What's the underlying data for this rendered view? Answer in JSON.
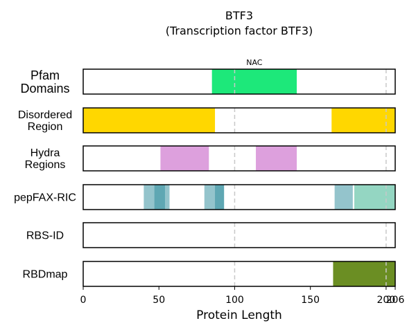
{
  "chart_data": {
    "type": "bar",
    "title": "BTF3",
    "subtitle": "(Transcription factor BTF3)",
    "xlabel": "Protein Length",
    "xlim": [
      0,
      206
    ],
    "xticks": [
      {
        "value": 0,
        "label": "0"
      },
      {
        "value": 50,
        "label": "50"
      },
      {
        "value": 100,
        "label": "100"
      },
      {
        "value": 150,
        "label": "150"
      },
      {
        "value": 200,
        "label": "200"
      },
      {
        "value": 206,
        "label": "206"
      }
    ],
    "reference_lines": [
      100,
      200
    ],
    "tracks": [
      {
        "label": "Pfam\nDomains",
        "segments": [
          {
            "start": 85,
            "end": 141,
            "color": "#1de87a",
            "opacity": 1,
            "label": "NAC"
          }
        ]
      },
      {
        "label": "Disordered\nRegion",
        "segments": [
          {
            "start": 0,
            "end": 87,
            "color": "#ffd700",
            "opacity": 1
          },
          {
            "start": 164,
            "end": 206,
            "color": "#ffd700",
            "opacity": 1
          }
        ]
      },
      {
        "label": "Hydra\nRegions",
        "segments": [
          {
            "start": 51,
            "end": 83,
            "color": "#dda0dd",
            "opacity": 1
          },
          {
            "start": 114,
            "end": 141,
            "color": "#dda0dd",
            "opacity": 1
          }
        ]
      },
      {
        "label": "pepFAX-RIC",
        "segments": [
          {
            "start": 40,
            "end": 57,
            "color": "#2a8a99",
            "opacity": 0.5
          },
          {
            "start": 47,
            "end": 54,
            "color": "#2a8a99",
            "opacity": 0.5
          },
          {
            "start": 80,
            "end": 93,
            "color": "#2a8a99",
            "opacity": 0.5
          },
          {
            "start": 87,
            "end": 93,
            "color": "#2a8a99",
            "opacity": 0.5
          },
          {
            "start": 166,
            "end": 178,
            "color": "#2a8a99",
            "opacity": 0.5
          },
          {
            "start": 179,
            "end": 206,
            "color": "#3cb48f",
            "opacity": 0.55
          }
        ]
      },
      {
        "label": "RBS-ID",
        "segments": []
      },
      {
        "label": "RBDmap",
        "segments": [
          {
            "start": 165,
            "end": 206,
            "color": "#6b8e23",
            "opacity": 1
          }
        ]
      }
    ]
  }
}
